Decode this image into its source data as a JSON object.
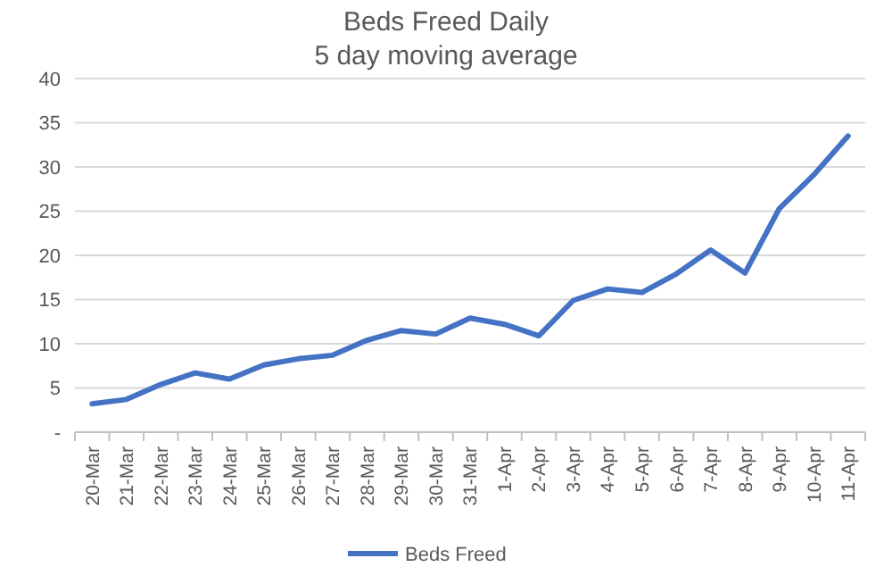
{
  "chart_data": {
    "type": "line",
    "title": "Beds Freed Daily",
    "subtitle": "5 day moving average",
    "categories": [
      "20-Mar",
      "21-Mar",
      "22-Mar",
      "23-Mar",
      "24-Mar",
      "25-Mar",
      "26-Mar",
      "27-Mar",
      "28-Mar",
      "29-Mar",
      "30-Mar",
      "31-Mar",
      "1-Apr",
      "2-Apr",
      "3-Apr",
      "4-Apr",
      "5-Apr",
      "6-Apr",
      "7-Apr",
      "8-Apr",
      "9-Apr",
      "10-Apr",
      "11-Apr"
    ],
    "series": [
      {
        "name": "Beds Freed",
        "color": "#4472c4",
        "values": [
          3.2,
          3.7,
          5.4,
          6.7,
          6.0,
          7.6,
          8.3,
          8.7,
          10.4,
          11.5,
          11.1,
          12.9,
          12.2,
          10.9,
          14.9,
          16.2,
          15.8,
          17.9,
          20.6,
          18.0,
          25.3,
          29.1,
          33.5
        ]
      }
    ],
    "ylim": [
      0,
      40
    ],
    "yticks": [
      {
        "value": 0,
        "label": "-"
      },
      5,
      10,
      15,
      20,
      25,
      30,
      35,
      40
    ],
    "grid": "y",
    "legend": "bottom",
    "marker": "none",
    "line_style": "solid"
  }
}
